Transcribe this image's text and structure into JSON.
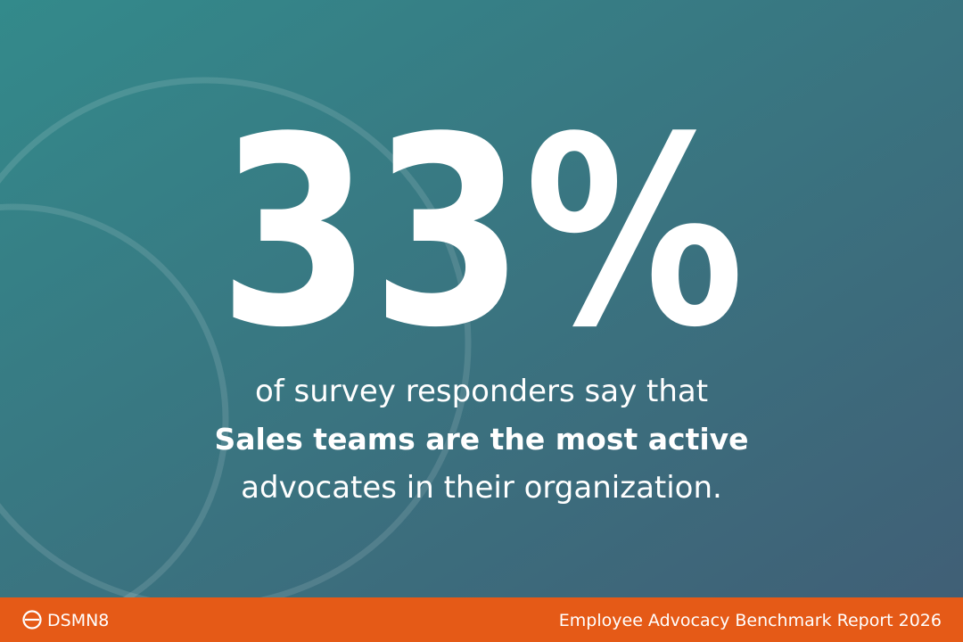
{
  "stat": "33%",
  "lines": [
    "of survey responders say that",
    "Sales teams are the most active",
    "advocates in their organization."
  ],
  "footer": {
    "brand": "DSMN8",
    "report": "Employee Advocacy Benchmark Report 2026"
  }
}
